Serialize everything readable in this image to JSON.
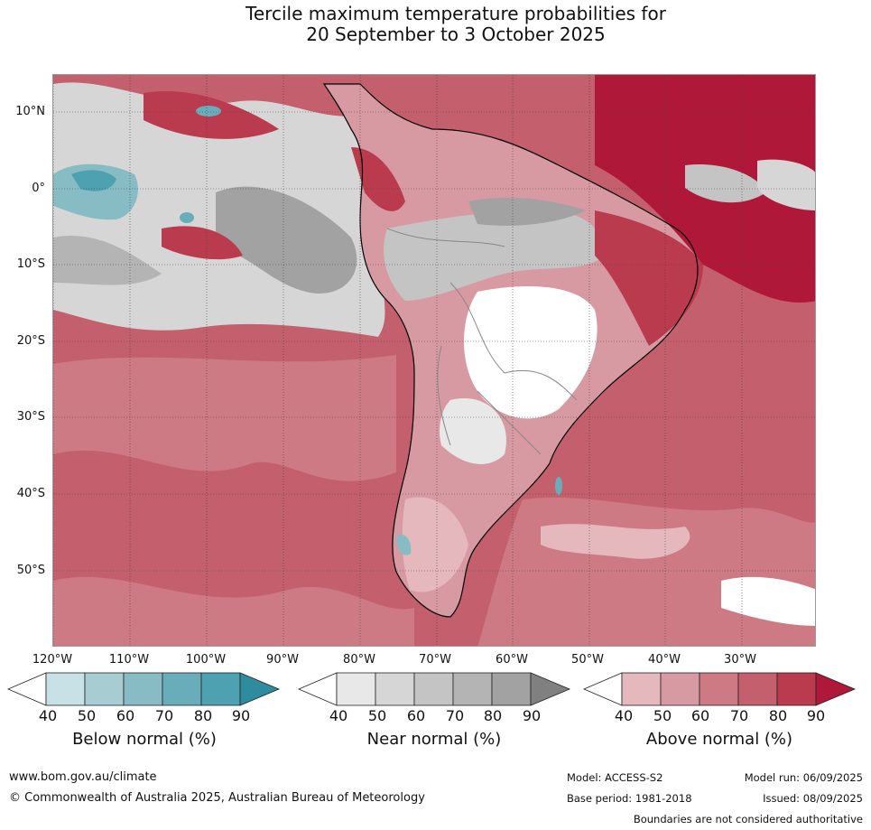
{
  "title": {
    "line1": "Tercile maximum temperature probabilities for",
    "line2": "20 September to 3 October 2025"
  },
  "map": {
    "latitudes": [
      "10°N",
      "0°",
      "10°S",
      "20°S",
      "30°S",
      "40°S",
      "50°S"
    ],
    "longitudes": [
      "120°W",
      "110°W",
      "100°W",
      "90°W",
      "80°W",
      "70°W",
      "60°W",
      "50°W",
      "40°W",
      "30°W"
    ]
  },
  "legend": {
    "below": {
      "label": "Below normal (%)",
      "ticks": [
        "40",
        "50",
        "60",
        "70",
        "80",
        "90"
      ],
      "colors": [
        "#ffffff",
        "#c7e1e6",
        "#a7cdd3",
        "#88bcc4",
        "#6aadba",
        "#4ea1b0",
        "#2f8c9f"
      ]
    },
    "near": {
      "label": "Near normal (%)",
      "ticks": [
        "40",
        "50",
        "60",
        "70",
        "80",
        "90"
      ],
      "colors": [
        "#ffffff",
        "#e8e8e8",
        "#d6d6d6",
        "#c4c4c4",
        "#b4b4b4",
        "#a2a2a2",
        "#808080"
      ]
    },
    "above": {
      "label": "Above normal (%)",
      "ticks": [
        "40",
        "50",
        "60",
        "70",
        "80",
        "90"
      ],
      "colors": [
        "#ffffff",
        "#e4b8bd",
        "#d89aa2",
        "#cd7a85",
        "#c45f6d",
        "#ba3a4e",
        "#b0183a"
      ]
    }
  },
  "footer": {
    "website": "www.bom.gov.au/climate",
    "copyright": "© Commonwealth of Australia 2025, Australian Bureau of Meteorology",
    "model": "Model: ACCESS-S2",
    "base_period": "Base period: 1981-2018",
    "model_run": "Model run: 06/09/2025",
    "issued": "Issued: 08/09/2025",
    "boundaries": "Boundaries are not considered authoritative"
  }
}
